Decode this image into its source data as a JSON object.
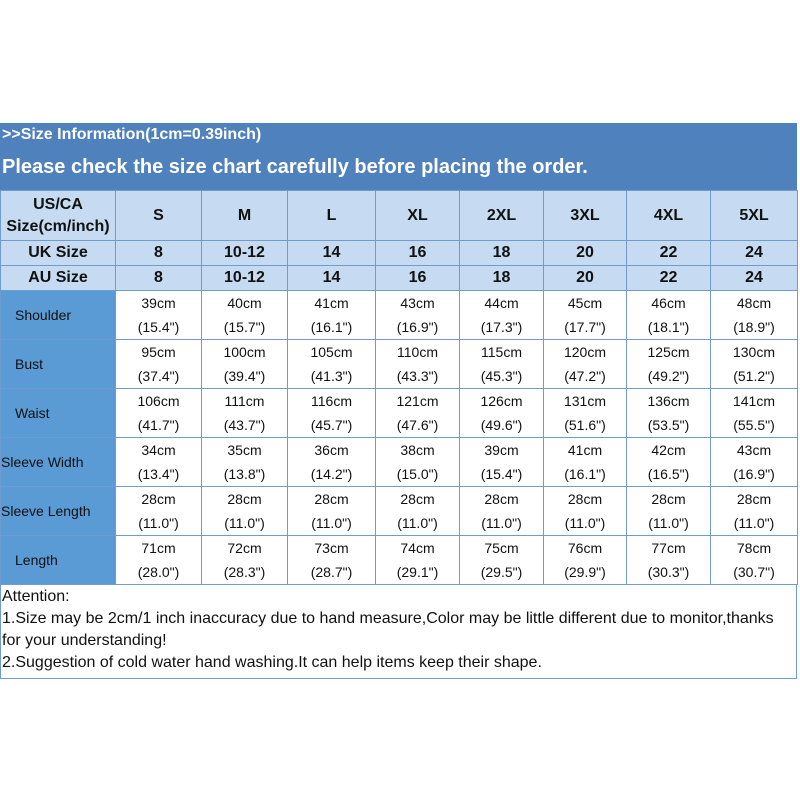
{
  "header": {
    "info": ">>Size Information(1cm=0.39inch)",
    "notice": "Please check the size chart carefully before placing the order."
  },
  "colors": {
    "header_bar": "#4f81bd",
    "header_cells": "#c6dbf1",
    "label_cells": "#5b9bd5"
  },
  "table": {
    "us_label": "US/CA",
    "us_label2": "Size(cm/inch)",
    "sizes": [
      "S",
      "M",
      "L",
      "XL",
      "2XL",
      "3XL",
      "4XL",
      "5XL"
    ],
    "uk_label": "UK Size",
    "uk": [
      "8",
      "10-12",
      "14",
      "16",
      "18",
      "20",
      "22",
      "24"
    ],
    "au_label": "AU Size",
    "au": [
      "8",
      "10-12",
      "14",
      "16",
      "18",
      "20",
      "22",
      "24"
    ],
    "rows": [
      {
        "label": "Shoulder",
        "cm": [
          "39cm",
          "40cm",
          "41cm",
          "43cm",
          "44cm",
          "45cm",
          "46cm",
          "48cm"
        ],
        "inch": [
          "(15.4\")",
          "(15.7\")",
          "(16.1\")",
          "(16.9\")",
          "(17.3\")",
          "(17.7\")",
          "(18.1\")",
          "(18.9\")"
        ]
      },
      {
        "label": "Bust",
        "cm": [
          "95cm",
          "100cm",
          "105cm",
          "110cm",
          "115cm",
          "120cm",
          "125cm",
          "130cm"
        ],
        "inch": [
          "(37.4\")",
          "(39.4\")",
          "(41.3\")",
          "(43.3\")",
          "(45.3\")",
          "(47.2\")",
          "(49.2\")",
          "(51.2\")"
        ]
      },
      {
        "label": "Waist",
        "cm": [
          "106cm",
          "111cm",
          "116cm",
          "121cm",
          "126cm",
          "131cm",
          "136cm",
          "141cm"
        ],
        "inch": [
          "(41.7\")",
          "(43.7\")",
          "(45.7\")",
          "(47.6\")",
          "(49.6\")",
          "(51.6\")",
          "(53.5\")",
          "(55.5\")"
        ]
      },
      {
        "label": "Sleeve Width",
        "cm": [
          "34cm",
          "35cm",
          "36cm",
          "38cm",
          "39cm",
          "41cm",
          "42cm",
          "43cm"
        ],
        "inch": [
          "(13.4\")",
          "(13.8\")",
          "(14.2\")",
          "(15.0\")",
          "(15.4\")",
          "(16.1\")",
          "(16.5\")",
          "(16.9\")"
        ]
      },
      {
        "label": "Sleeve Length",
        "cm": [
          "28cm",
          "28cm",
          "28cm",
          "28cm",
          "28cm",
          "28cm",
          "28cm",
          "28cm"
        ],
        "inch": [
          "(11.0\")",
          "(11.0\")",
          "(11.0\")",
          "(11.0\")",
          "(11.0\")",
          "(11.0\")",
          "(11.0\")",
          "(11.0\")"
        ]
      },
      {
        "label": "Length",
        "cm": [
          "71cm",
          "72cm",
          "73cm",
          "74cm",
          "75cm",
          "76cm",
          "77cm",
          "78cm"
        ],
        "inch": [
          "(28.0\")",
          "(28.3\")",
          "(28.7\")",
          "(29.1\")",
          "(29.5\")",
          "(29.9\")",
          "(30.3\")",
          "(30.7\")"
        ]
      }
    ]
  },
  "notes": {
    "title": "Attention:",
    "line1": "1.Size may be 2cm/1 inch inaccuracy due to hand measure,Color may be little different due to monitor,thanks for your understanding!",
    "line2": "2.Suggestion of cold water hand washing.It can help items keep their shape."
  }
}
